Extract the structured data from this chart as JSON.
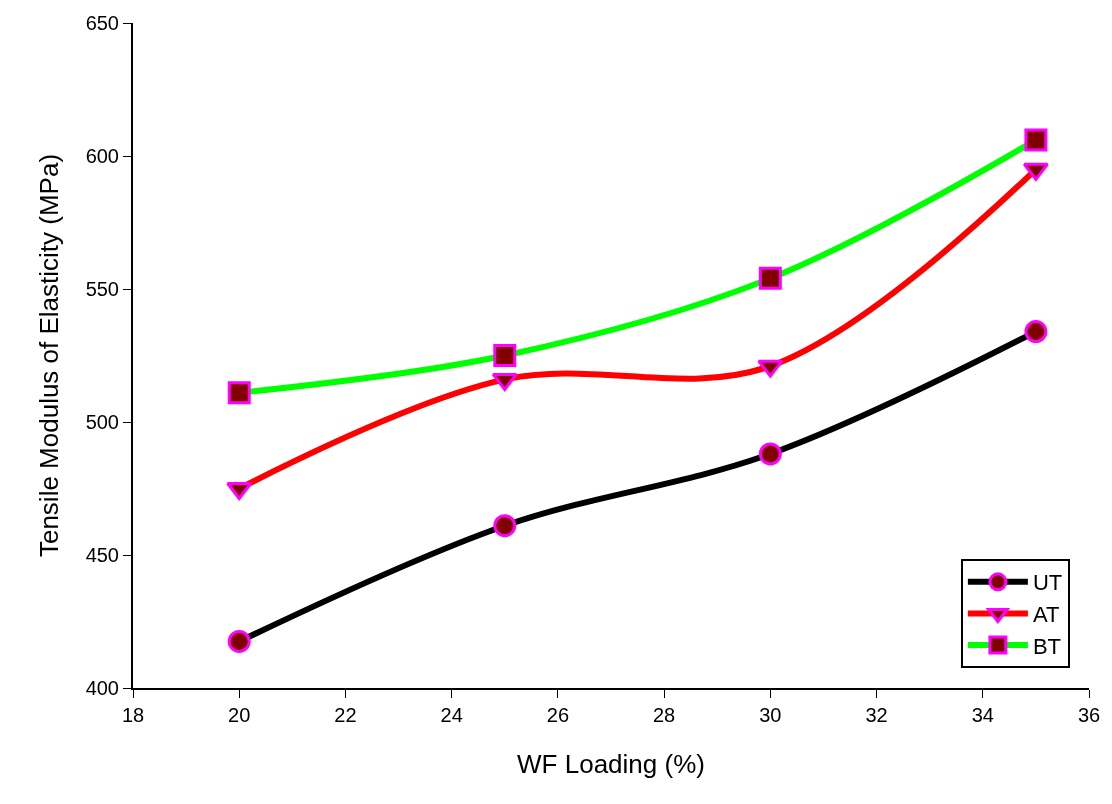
{
  "chart_data": {
    "type": "line",
    "xlabel": "WF Loading (%)",
    "ylabel": "Tensile Modulus of Elasticity (MPa)",
    "x": [
      20,
      25,
      30,
      35
    ],
    "series": [
      {
        "name": "UT",
        "color": "#000000",
        "marker": "circle",
        "values": [
          417.5,
          461,
          488,
          534
        ]
      },
      {
        "name": "AT",
        "color": "#ff0000",
        "marker": "triangle",
        "values": [
          475,
          516,
          521,
          595
        ]
      },
      {
        "name": "BT",
        "color": "#00ff00",
        "marker": "square",
        "values": [
          511,
          525,
          554,
          606
        ]
      }
    ],
    "xlim": [
      18,
      36
    ],
    "xticks": [
      18,
      20,
      22,
      24,
      26,
      28,
      30,
      32,
      34,
      36
    ],
    "ylim": [
      400,
      650
    ],
    "yticks": [
      400,
      450,
      500,
      550,
      600,
      650
    ],
    "legend": "bottom right",
    "line_style": "solid"
  }
}
